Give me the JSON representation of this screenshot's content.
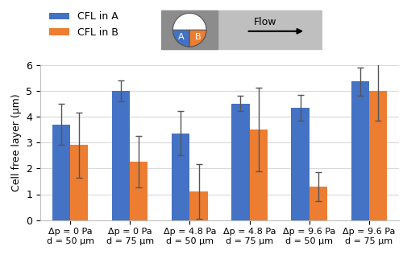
{
  "chart_data": {
    "type": "bar",
    "y_label": "Cell free layer (µm)",
    "categories": [
      "Δp = 0 Pa\nd = 50 µm",
      "Δp = 0 Pa\nd = 75 µm",
      "Δp = 4.8 Pa\nd = 50 µm",
      "Δp = 4.8 Pa\nd = 75 µm",
      "Δp = 9.6 Pa\nd = 50 µm",
      "Δp = 9.6 Pa\nd = 75 µm"
    ],
    "series": [
      {
        "name": "CFL in A",
        "color": "#4472c4",
        "values": [
          3.7,
          5.0,
          3.35,
          4.5,
          4.35,
          5.35
        ],
        "errors": [
          0.8,
          0.4,
          0.85,
          0.3,
          0.5,
          0.55
        ]
      },
      {
        "name": "CFL in B",
        "color": "#ed7d31",
        "values": [
          2.9,
          2.25,
          1.1,
          3.5,
          1.3,
          5.0
        ],
        "errors": [
          1.25,
          1.0,
          1.05,
          1.6,
          0.55,
          1.15
        ]
      }
    ],
    "ylim": [
      0,
      6
    ],
    "yticks": [
      0,
      1,
      2,
      3,
      4,
      5,
      6
    ],
    "grid": true,
    "legend": "upper left",
    "annotations": [
      "A",
      "B",
      "Flow"
    ]
  }
}
